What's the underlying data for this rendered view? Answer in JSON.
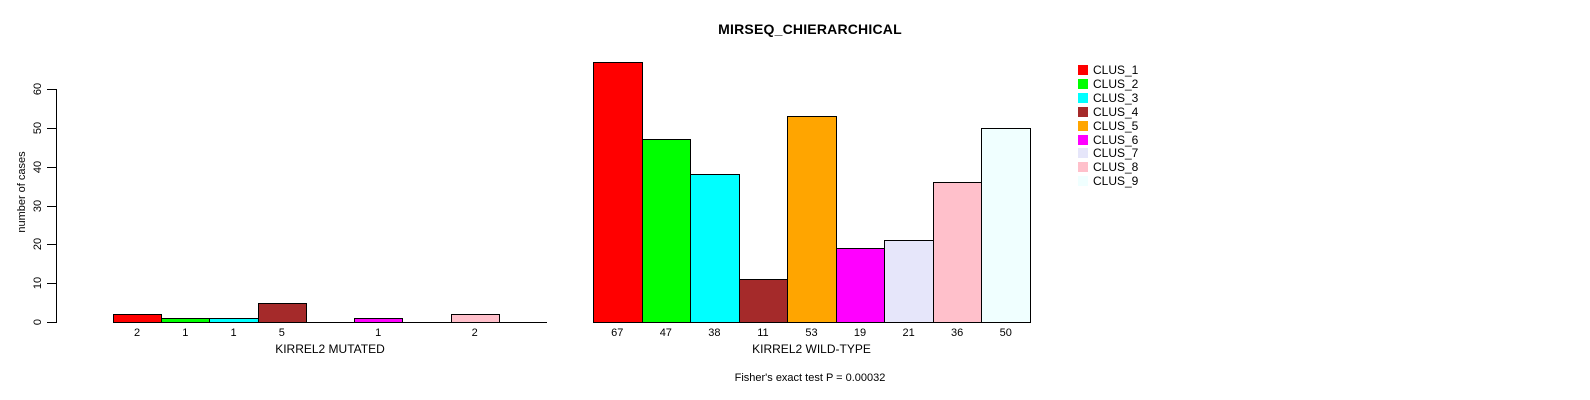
{
  "title": "MIRSEQ_CHIERARCHICAL",
  "footer": "Fisher's exact test P = 0.00032",
  "y_axis": {
    "label": "number of cases",
    "ticks": [
      0,
      10,
      20,
      30,
      40,
      50,
      60
    ]
  },
  "legend": {
    "position": "right",
    "items": [
      {
        "label": "CLUS_1",
        "color": "#FF0000"
      },
      {
        "label": "CLUS_2",
        "color": "#00FF00"
      },
      {
        "label": "CLUS_3",
        "color": "#00FFFF"
      },
      {
        "label": "CLUS_4",
        "color": "#A52A2A"
      },
      {
        "label": "CLUS_5",
        "color": "#FFA500"
      },
      {
        "label": "CLUS_6",
        "color": "#FF00FF"
      },
      {
        "label": "CLUS_7",
        "color": "#E6E6FA"
      },
      {
        "label": "CLUS_8",
        "color": "#FFC0CB"
      },
      {
        "label": "CLUS_9",
        "color": "#F0FFFF"
      }
    ]
  },
  "chart_data": [
    {
      "type": "bar",
      "xlabel": "KIRREL2 MUTATED",
      "categories": [
        "CLUS_1",
        "CLUS_2",
        "CLUS_3",
        "CLUS_4",
        "CLUS_5",
        "CLUS_6",
        "CLUS_7",
        "CLUS_8",
        "CLUS_9"
      ],
      "values": [
        2,
        1,
        1,
        5,
        0,
        1,
        0,
        2,
        0
      ],
      "ylabel": "number of cases",
      "ylim": [
        0,
        60
      ],
      "grid": false,
      "note": "zero-count clusters have no bar and no count label"
    },
    {
      "type": "bar",
      "xlabel": "KIRREL2 WILD-TYPE",
      "categories": [
        "CLUS_1",
        "CLUS_2",
        "CLUS_3",
        "CLUS_4",
        "CLUS_5",
        "CLUS_6",
        "CLUS_7",
        "CLUS_8",
        "CLUS_9"
      ],
      "values": [
        67,
        47,
        38,
        11,
        53,
        19,
        21,
        36,
        50
      ],
      "ylabel": "number of cases",
      "ylim": [
        0,
        60
      ],
      "grid": false,
      "note": "first bar (67) overflows the 0-60 axis"
    }
  ]
}
